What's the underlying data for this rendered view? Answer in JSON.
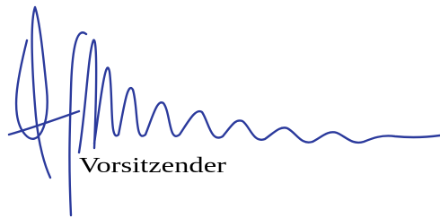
{
  "signature": {
    "caption": "Vorsitzender"
  }
}
